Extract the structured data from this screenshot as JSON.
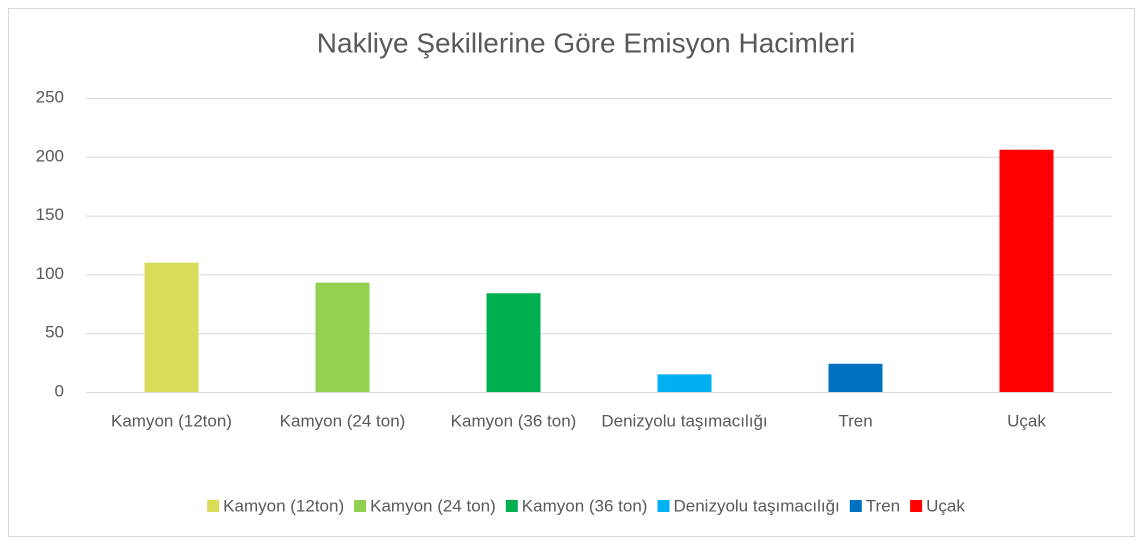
{
  "chart_data": {
    "type": "bar",
    "title": "Nakliye Şekillerine Göre Emisyon Hacimleri",
    "categories": [
      "Kamyon (12ton)",
      "Kamyon (24 ton)",
      "Kamyon (36 ton)",
      "Denizyolu taşımacılığı",
      "Tren",
      "Uçak"
    ],
    "values": [
      110,
      93,
      84,
      15,
      24,
      206
    ],
    "colors": [
      "#d9dc58",
      "#92d050",
      "#00b050",
      "#00b0f0",
      "#0070c0",
      "#ff0000"
    ],
    "ylim": [
      0,
      250
    ],
    "yticks": [
      0,
      50,
      100,
      150,
      200,
      250
    ],
    "grid": true,
    "legend": "bottom"
  }
}
